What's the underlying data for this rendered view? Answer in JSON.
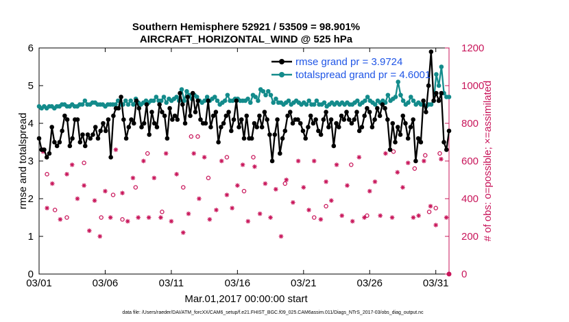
{
  "chart_data": {
    "type": "line",
    "title": "Southern Hemisphere 52921 / 53509 = 98.901%",
    "subtitle": "AIRCRAFT_HORIZONTAL_WIND @ 525 hPa",
    "xlabel": "Mar.01,2017 00:00:00 start",
    "ylabel": "rmse and totalspread",
    "ylabel_right": "# of obs: o=possible; ×=assimilated",
    "footer": "data file: /Users/raeder/DAI/ATM_forcXX/CAM6_setup/f.e21.FHIST_BGC.f09_025.CAM6assim.011/Diags_NTrS_2017-03/obs_diag_output.nc",
    "xlim": [
      0,
      31
    ],
    "ylim": [
      0,
      6
    ],
    "ylim_right": [
      0,
      1200
    ],
    "x_ticks": [
      0,
      5,
      10,
      15,
      20,
      25,
      30
    ],
    "x_tick_labels": [
      "03/01",
      "03/06",
      "03/11",
      "03/16",
      "03/21",
      "03/26",
      "03/31"
    ],
    "y_ticks": [
      0,
      1,
      2,
      3,
      4,
      5,
      6
    ],
    "y_tick_labels": [
      "0",
      "1",
      "2",
      "3",
      "4",
      "5",
      "6"
    ],
    "y_right_ticks": [
      0,
      200,
      400,
      600,
      800,
      1000,
      1200
    ],
    "y_right_tick_labels": [
      "0",
      "200",
      "400",
      "600",
      "800",
      "1000",
      "1200"
    ],
    "colors": {
      "rmse": "#000000",
      "spread": "#138b8b",
      "obs": "#c8155a",
      "legend_text": "#1f55e6"
    },
    "series": [
      {
        "name": "rmse grand pr = 3.9724",
        "values": [
          3.6,
          3.3,
          3.3,
          3.1,
          3.2,
          3.9,
          3.5,
          3.4,
          3.5,
          3.8,
          4.2,
          4.1,
          3.4,
          3.6,
          4.1,
          4.1,
          3.5,
          3.7,
          3.4,
          3.7,
          3.6,
          3.7,
          3.9,
          3.6,
          3.8,
          4.0,
          3.8,
          4.1,
          3.1,
          4.2,
          4.4,
          4.4,
          4.7,
          4.1,
          3.6,
          3.9,
          4.1,
          4.0,
          4.6,
          4.4,
          3.9,
          4.0,
          4.5,
          3.7,
          4.3,
          4.0,
          3.9,
          4.5,
          4.3,
          4.2,
          3.6,
          4.4,
          4.1,
          4.2,
          4.1,
          4.8,
          4.5,
          4.0,
          4.7,
          4.2,
          4.8,
          4.3,
          4.6,
          4.1,
          4.0,
          4.0,
          4.6,
          3.9,
          4.2,
          4.3,
          3.5,
          3.9,
          4.0,
          4.2,
          4.3,
          3.8,
          4.1,
          4.6,
          3.9,
          4.1,
          3.6,
          4.2,
          3.6,
          3.6,
          4.0,
          3.9,
          4.2,
          3.9,
          4.3,
          4.1,
          3.7,
          3.0,
          3.7,
          4.1,
          3.2,
          3.6,
          3.8,
          4.2,
          4.3,
          4.0,
          4.1,
          4.1,
          4.0,
          3.8,
          3.6,
          3.9,
          4.2,
          4.0,
          4.1,
          3.8,
          3.7,
          4.1,
          4.3,
          3.9,
          4.1,
          3.4,
          4.0,
          3.9,
          4.2,
          4.1,
          4.3,
          4.1,
          4.0,
          4.1,
          4.3,
          3.8,
          3.9,
          4.2,
          4.4,
          4.3,
          3.9,
          4.1,
          4.4,
          4.2,
          4.5,
          4.4,
          4.1,
          3.3,
          4.0,
          3.5,
          3.9,
          3.7,
          4.2,
          4.0,
          3.6,
          3.9,
          4.1,
          3.0,
          3.6,
          3.5,
          4.6,
          4.3,
          5.0,
          5.9,
          4.6,
          4.8,
          4.6,
          4.8,
          3.5,
          3.3,
          3.8
        ],
        "color": "#000000"
      },
      {
        "name": "totalspread grand pr = 4.6001",
        "values": [
          4.45,
          4.4,
          4.45,
          4.4,
          4.45,
          4.45,
          4.4,
          4.45,
          4.45,
          4.5,
          4.5,
          4.45,
          4.45,
          4.5,
          4.45,
          4.45,
          4.5,
          4.5,
          4.6,
          4.5,
          4.5,
          4.55,
          4.55,
          4.5,
          4.5,
          4.5,
          4.45,
          4.5,
          4.5,
          4.5,
          4.5,
          4.6,
          4.5,
          4.5,
          4.6,
          4.5,
          4.6,
          4.5,
          4.65,
          4.55,
          4.5,
          4.55,
          4.6,
          4.55,
          4.6,
          4.6,
          4.7,
          4.6,
          4.6,
          4.7,
          4.55,
          4.65,
          4.6,
          4.65,
          4.7,
          4.6,
          4.9,
          4.6,
          4.85,
          4.75,
          4.65,
          4.75,
          4.7,
          4.6,
          4.55,
          4.6,
          4.7,
          4.6,
          4.65,
          4.7,
          4.6,
          4.5,
          4.55,
          4.6,
          4.75,
          4.6,
          4.6,
          4.65,
          4.65,
          4.6,
          4.6,
          4.6,
          4.65,
          4.55,
          4.75,
          4.7,
          4.6,
          4.9,
          4.85,
          4.75,
          4.85,
          4.75,
          4.55,
          4.65,
          4.55,
          4.55,
          4.5,
          4.55,
          4.6,
          4.5,
          4.55,
          4.6,
          4.55,
          4.5,
          4.55,
          4.5,
          4.6,
          4.5,
          4.5,
          4.6,
          4.5,
          4.5,
          4.55,
          4.45,
          4.5,
          4.55,
          4.5,
          4.55,
          4.5,
          4.55,
          4.5,
          4.55,
          4.5,
          4.5,
          4.55,
          4.6,
          4.5,
          4.55,
          4.6,
          4.7,
          4.6,
          4.55,
          4.5,
          4.6,
          4.55,
          4.6,
          4.55,
          4.75,
          4.6,
          4.65,
          4.7,
          5.1,
          4.75,
          4.6,
          4.5,
          4.55,
          4.7,
          4.6,
          4.5,
          4.55,
          4.5,
          4.5,
          4.45,
          4.5,
          4.5,
          4.6,
          5.3,
          5.0,
          5.5,
          4.8,
          4.7,
          4.7
        ],
        "color": "#138b8b"
      }
    ],
    "obs_possible_x": [
      0.3,
      0.6,
      1.2,
      2.1,
      3.4,
      4.7,
      5.6,
      6.3,
      7.3,
      8.2,
      9.3,
      10.9,
      11.5,
      12.0,
      12.8,
      14.2,
      15.5,
      16.2,
      18.6,
      20.8,
      21.7,
      23.6,
      24.8,
      26.8,
      28.4,
      29.2,
      29.5,
      30.0,
      30.3
    ],
    "obs_possible": [
      660,
      530,
      340,
      300,
      590,
      300,
      420,
      290,
      460,
      640,
      330,
      460,
      730,
      730,
      510,
      620,
      440,
      620,
      480,
      300,
      360,
      580,
      310,
      650,
      560,
      630,
      330,
      350,
      640
    ],
    "obs_assimilated_x": [
      0.3,
      0.6,
      1.0,
      1.6,
      2.1,
      2.5,
      2.9,
      3.4,
      3.8,
      4.2,
      4.6,
      5.0,
      5.4,
      5.8,
      6.3,
      6.7,
      7.1,
      7.5,
      7.9,
      8.3,
      8.7,
      9.2,
      9.6,
      10.0,
      10.4,
      10.9,
      11.3,
      11.7,
      12.1,
      12.5,
      12.9,
      13.4,
      13.8,
      14.2,
      14.6,
      15.0,
      15.4,
      15.8,
      16.3,
      16.7,
      17.1,
      17.5,
      17.9,
      18.3,
      18.7,
      19.2,
      19.6,
      20.0,
      20.4,
      20.8,
      21.3,
      21.7,
      22.1,
      22.5,
      22.9,
      23.3,
      23.7,
      24.2,
      24.6,
      25.0,
      25.4,
      25.8,
      26.2,
      26.7,
      27.1,
      27.5,
      27.9,
      28.3,
      28.7,
      29.1,
      29.6,
      30.0,
      30.4,
      30.8
    ],
    "obs_assimilated": [
      650,
      350,
      480,
      290,
      530,
      580,
      400,
      470,
      230,
      390,
      200,
      440,
      300,
      660,
      430,
      280,
      510,
      300,
      600,
      300,
      510,
      300,
      640,
      280,
      530,
      220,
      320,
      640,
      400,
      620,
      290,
      340,
      600,
      420,
      350,
      470,
      580,
      280,
      570,
      320,
      480,
      300,
      450,
      200,
      500,
      380,
      600,
      460,
      340,
      600,
      290,
      490,
      390,
      580,
      310,
      470,
      280,
      620,
      300,
      440,
      490,
      310,
      640,
      300,
      540,
      460,
      590,
      300,
      310,
      600,
      360,
      260,
      610,
      300
    ]
  },
  "legend": {
    "rmse_label": "rmse grand pr = 3.9724",
    "spread_label": "totalspread grand pr = 4.6001"
  }
}
